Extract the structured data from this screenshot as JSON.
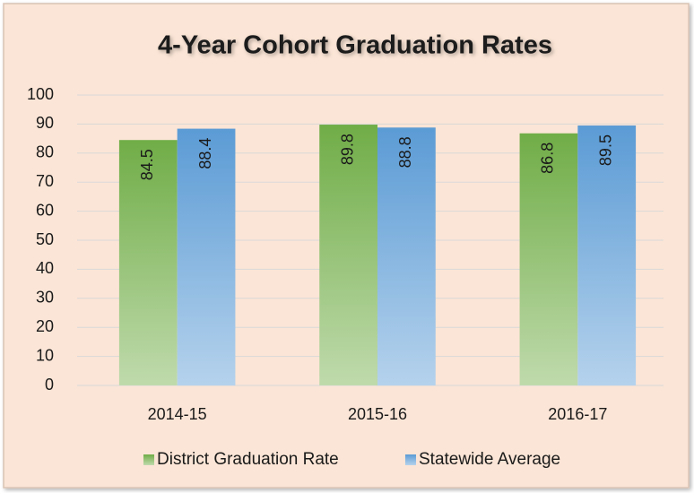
{
  "chart_data": {
    "type": "bar",
    "title": "4-Year Cohort Graduation Rates",
    "categories": [
      "2014-15",
      "2015-16",
      "2016-17"
    ],
    "series": [
      {
        "name": "District Graduation Rate",
        "color": "#70ad47",
        "values": [
          84.5,
          89.8,
          86.8
        ]
      },
      {
        "name": "Statewide Average",
        "color": "#5b9bd5",
        "values": [
          88.4,
          88.8,
          89.5
        ]
      }
    ],
    "ylim": [
      0,
      100
    ],
    "yticks": [
      0,
      10,
      20,
      30,
      40,
      50,
      60,
      70,
      80,
      90,
      100
    ],
    "grid": true,
    "legend": "bottom"
  }
}
